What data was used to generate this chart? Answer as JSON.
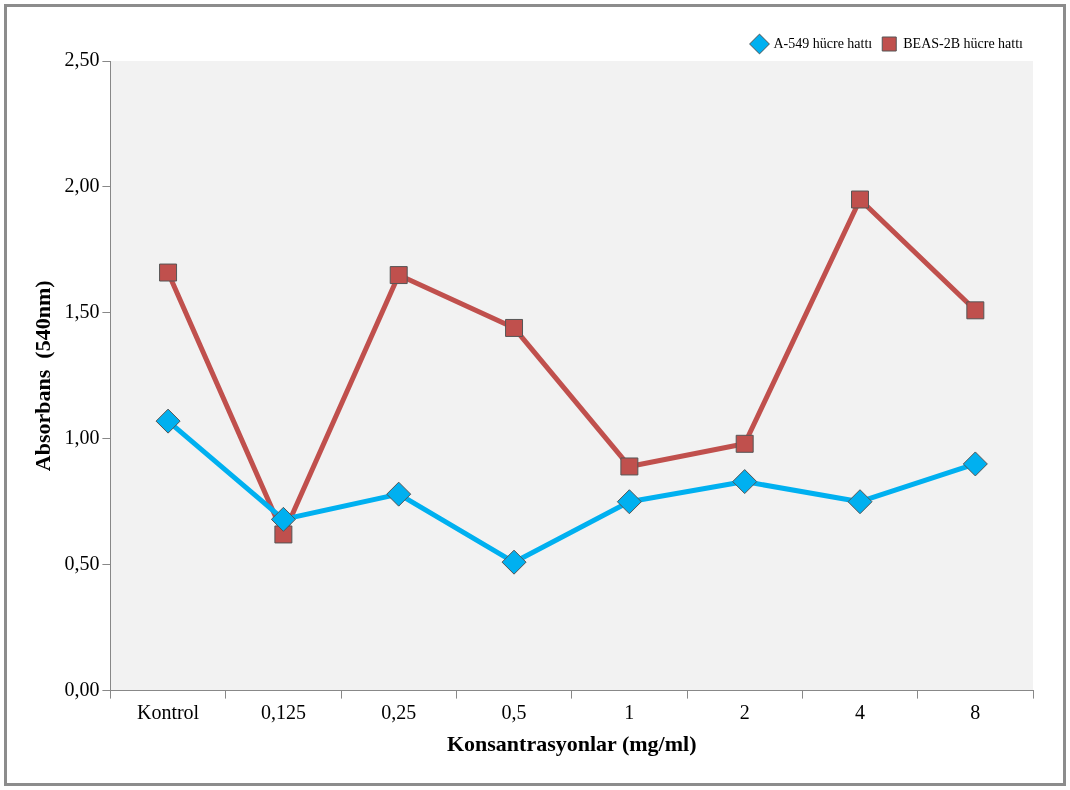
{
  "chart_data": {
    "type": "line",
    "xlabel": "Konsantrasyonlar (mg/ml)",
    "ylabel": "Absorbans  (540nm)",
    "categories": [
      "Kontrol",
      "0,125",
      "0,25",
      "0,5",
      "1",
      "2",
      "4",
      "8"
    ],
    "series": [
      {
        "name": "A-549 hücre hattı",
        "color": "#00b0f0",
        "marker": "diamond",
        "values": [
          1.07,
          0.68,
          0.78,
          0.51,
          0.75,
          0.83,
          0.75,
          0.9
        ]
      },
      {
        "name": "BEAS-2B hücre hattı",
        "color": "#c0504d",
        "marker": "square",
        "values": [
          1.66,
          0.62,
          1.65,
          1.44,
          0.89,
          0.98,
          1.95,
          1.51
        ]
      }
    ],
    "ylim": [
      0,
      2.5
    ],
    "yticks": [
      {
        "value": 0,
        "label": "0,00"
      },
      {
        "value": 0.5,
        "label": "0,50"
      },
      {
        "value": 1,
        "label": "1,00"
      },
      {
        "value": 1.5,
        "label": "1,50"
      },
      {
        "value": 2,
        "label": "2,00"
      },
      {
        "value": 2.5,
        "label": "2,50"
      }
    ],
    "grid": false,
    "legend": "top right",
    "line_style": "solid"
  }
}
